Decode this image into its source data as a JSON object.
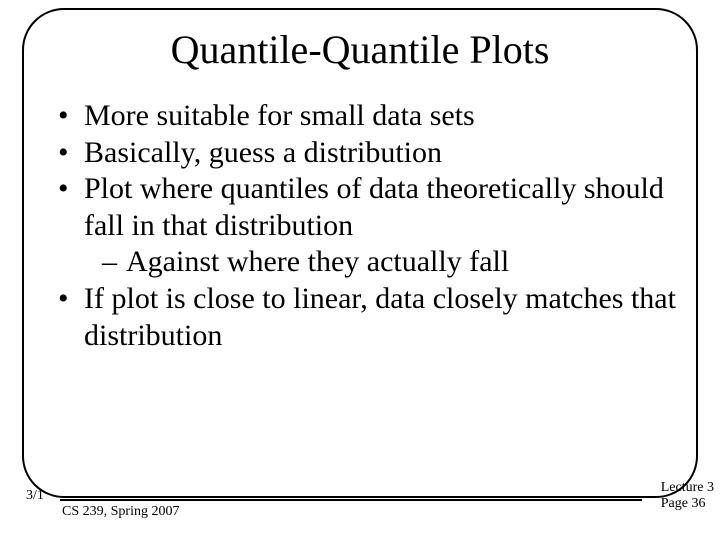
{
  "title": "Quantile-Quantile Plots",
  "bullets": {
    "b0": "More suitable for small data sets",
    "b1": "Basically, guess a distribution",
    "b2": "Plot where quantiles of data theoretically should fall in that distribution",
    "b2_sub": "Against where they actually fall",
    "b3": "If plot is close to linear, data closely matches that distribution"
  },
  "footer": {
    "date": "3/1",
    "course": "CS 239, Spring 2007",
    "lecture": "Lecture 3",
    "page": "Page 36"
  },
  "style": {
    "background_color": "#ffffff",
    "text_color": "#000000",
    "border_color": "#000000",
    "title_fontsize": 40,
    "body_fontsize": 30,
    "footer_fontsize": 14,
    "border_radius": 42,
    "border_width": 2.5,
    "font_family": "Times New Roman"
  }
}
